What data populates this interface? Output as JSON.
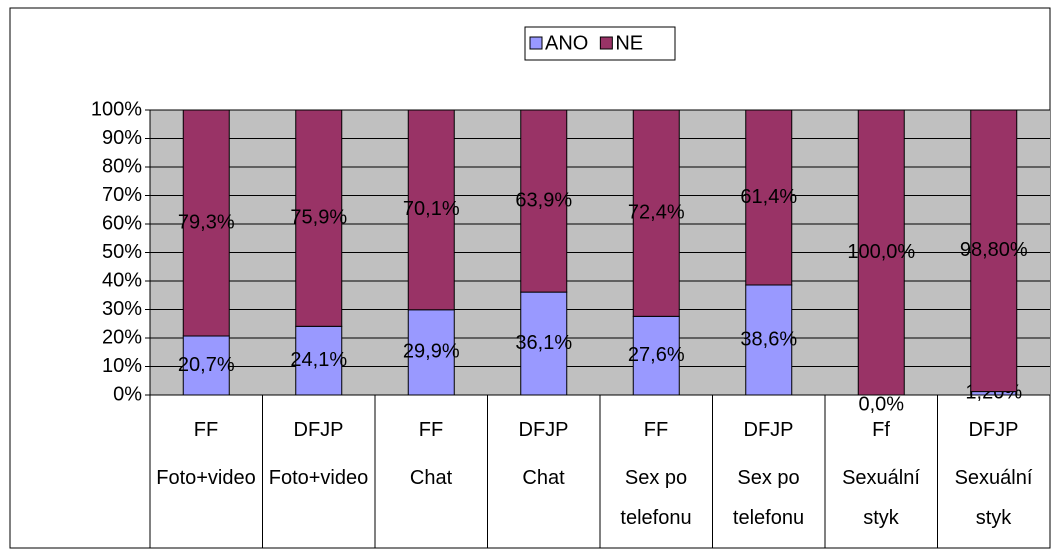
{
  "chart_data": {
    "type": "stacked_bar_100",
    "categories": [
      "FF",
      "DFJP",
      "FF",
      "DFJP",
      "FF",
      "DFJP",
      "Ff",
      "DFJP"
    ],
    "groups": [
      "Foto+video",
      "Foto+video",
      "Chat",
      "Chat",
      "Sex po telefonu",
      "Sex po telefonu",
      "Sexuální styk",
      "Sexuální styk"
    ],
    "series": [
      {
        "name": "ANO",
        "color": "#9999ff",
        "values": [
          20.7,
          24.1,
          29.9,
          36.1,
          27.6,
          38.6,
          0,
          1.2
        ],
        "value_labels": [
          "20,7%",
          "24,1%",
          "29,9%",
          "36,1%",
          "27,6%",
          "38,6%",
          "0,0%",
          "1,20%"
        ]
      },
      {
        "name": "NE",
        "color": "#993366",
        "values": [
          79.3,
          75.9,
          70.1,
          63.9,
          72.4,
          61.4,
          100,
          98.8
        ],
        "value_labels": [
          "79,3%",
          "75,9%",
          "70,1%",
          "63,9%",
          "72,4%",
          "61,4%",
          "100,0%",
          "98,80%"
        ]
      }
    ],
    "ylim": [
      0,
      100
    ],
    "yticks": [
      {
        "value": 0,
        "label": "0%"
      },
      {
        "value": 10,
        "label": "10%"
      },
      {
        "value": 20,
        "label": "20%"
      },
      {
        "value": 30,
        "label": "30%"
      },
      {
        "value": 40,
        "label": "40%"
      },
      {
        "value": 50,
        "label": "50%"
      },
      {
        "value": 60,
        "label": "60%"
      },
      {
        "value": 70,
        "label": "70%"
      },
      {
        "value": 80,
        "label": "80%"
      },
      {
        "value": 90,
        "label": "90%"
      },
      {
        "value": 100,
        "label": "100%"
      }
    ],
    "grid": true,
    "legend": "top",
    "plot_background": "#c0c0c0"
  }
}
